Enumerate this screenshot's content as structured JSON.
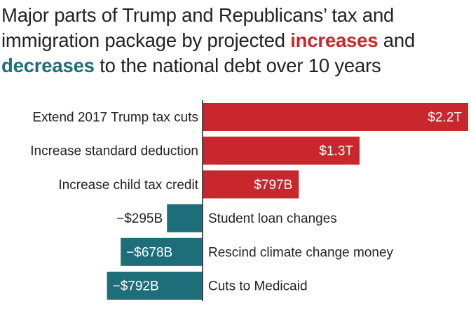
{
  "title": {
    "line1": "Major parts of Trump and Republicans’ tax and",
    "line2_pre": "immigration package by projected ",
    "line2_inc": "increases",
    "line2_post": " and",
    "line3_dec": "decreases",
    "line3_post": " to the national debt over 10 years"
  },
  "colors": {
    "increase": "#c8282d",
    "decrease": "#1e6e7a",
    "text": "#222222",
    "axis": "#222222"
  },
  "chart_data": {
    "type": "bar",
    "orientation": "horizontal",
    "unit": "billions of dollars",
    "categories": [
      "Extend 2017 Trump tax cuts",
      "Increase standard deduction",
      "Increase child tax credit",
      "Student loan changes",
      "Rescind climate change money",
      "Cuts to Medicaid"
    ],
    "values": [
      2200,
      1300,
      797,
      -295,
      -678,
      -792
    ],
    "value_labels": [
      "$2.2T",
      "$1.3T",
      "$797B",
      "−$295B",
      "−$678B",
      "−$792B"
    ],
    "title": "Major parts of Trump and Republicans’ tax and immigration package by projected increases and decreases to the national debt over 10 years",
    "xlabel": "",
    "ylabel": "",
    "xlim": [
      -800,
      2200
    ],
    "grid": false,
    "legend": "none"
  }
}
